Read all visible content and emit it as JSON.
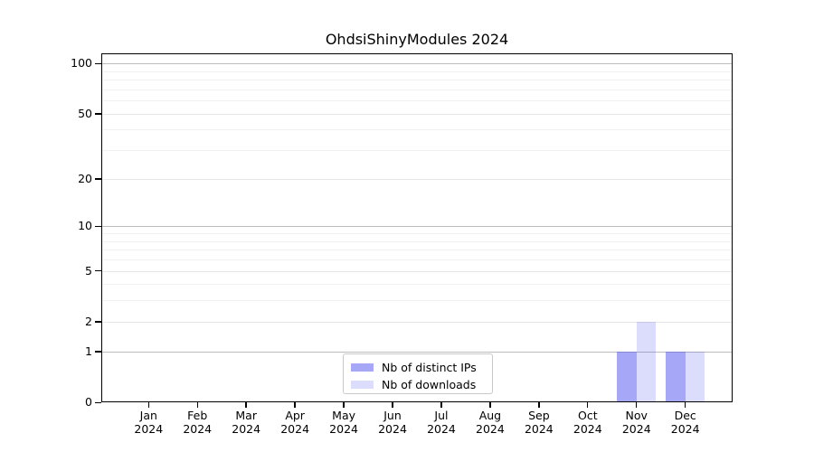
{
  "chart_data": {
    "type": "bar",
    "title": "OhdsiShinyModules 2024",
    "xlabel": "",
    "ylabel": "",
    "x_categories": [
      "Jan",
      "Feb",
      "Mar",
      "Apr",
      "May",
      "Jun",
      "Jul",
      "Aug",
      "Sep",
      "Oct",
      "Nov",
      "Dec"
    ],
    "x_year_label": "2024",
    "series": [
      {
        "name": "Nb of distinct IPs",
        "color": "#5050f0",
        "alpha": 0.5,
        "values": [
          0,
          0,
          0,
          0,
          0,
          0,
          0,
          0,
          0,
          0,
          1,
          1
        ]
      },
      {
        "name": "Nb of downloads",
        "color": "#5050f0",
        "alpha": 0.2,
        "values": [
          0,
          0,
          0,
          0,
          0,
          0,
          0,
          0,
          0,
          0,
          2,
          1
        ]
      }
    ],
    "y_scale": "log10(1+y)",
    "y_ticks": [
      0,
      1,
      2,
      5,
      10,
      20,
      50,
      100
    ],
    "y_tick_labels": [
      "0",
      "1",
      "2",
      "5",
      "10",
      "20",
      "50",
      "100"
    ],
    "y_minor_gridlines": [
      3,
      4,
      6,
      7,
      8,
      9,
      30,
      40,
      60,
      70,
      80,
      90
    ],
    "ylim": [
      0,
      115
    ],
    "grid": "both",
    "legend_position": "lower center"
  },
  "legend": {
    "items": [
      {
        "label": "Nb of distinct IPs"
      },
      {
        "label": "Nb of downloads"
      }
    ]
  },
  "colors": {
    "spine": "#000000",
    "grid_decade": "#bcbcbc",
    "grid_sub": "#e7e7e7",
    "grid_minor": "#f1f1f1",
    "legend_border": "#c9c9c9",
    "background": "#ffffff"
  }
}
